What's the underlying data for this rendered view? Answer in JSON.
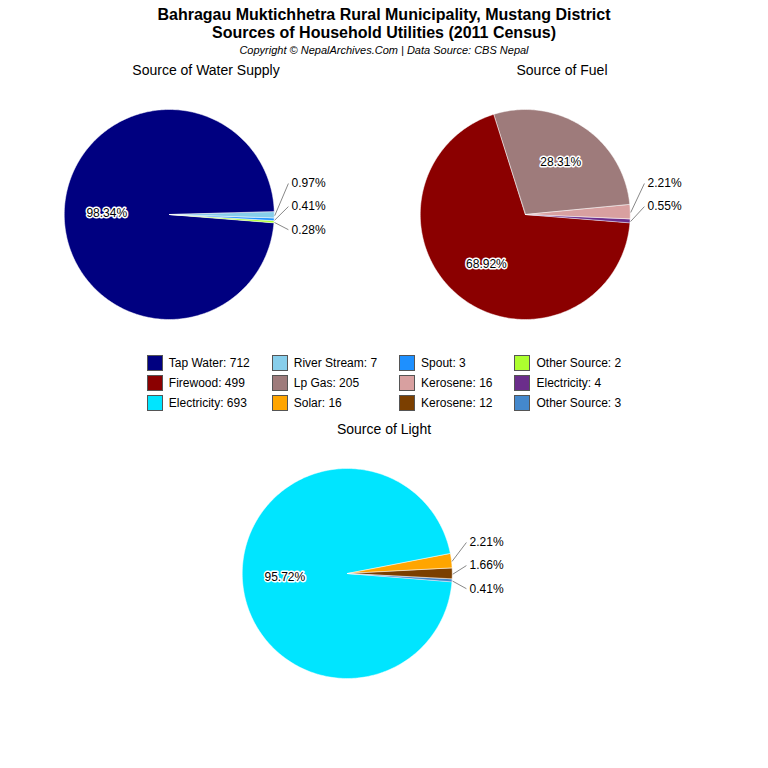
{
  "title": "Bahragau Muktichhetra Rural Municipality, Mustang District",
  "subtitle": "Sources of Household Utilities (2011 Census)",
  "annotations": [
    "Copyright © NepalArchives.Com | Data Source: CBS Nepal"
  ],
  "chart_data": [
    {
      "type": "pie",
      "title": "Source of Water Supply",
      "categories": [
        "Tap Water: 712",
        "River Stream: 7",
        "Spout: 3",
        "Other Source: 2"
      ],
      "values": [
        98.34,
        0.97,
        0.41,
        0.28
      ],
      "value_labels": [
        "98.34%",
        "0.97%",
        "0.41%",
        "0.28%"
      ],
      "colors": [
        "#000080",
        "#87ceeb",
        "#1e90ff",
        "#adff2f"
      ],
      "data_labels": true,
      "legend": "bottom"
    },
    {
      "type": "pie",
      "title": "Source of Fuel",
      "categories": [
        "Firewood: 499",
        "Lp Gas: 205",
        "Kerosene: 16",
        "Electricity: 4"
      ],
      "values": [
        68.92,
        28.31,
        2.21,
        0.55
      ],
      "value_labels": [
        "68.92%",
        "28.31%",
        "2.21%",
        "0.55%"
      ],
      "colors": [
        "#8b0000",
        "#9e7b7b",
        "#d8a0a0",
        "#6b2d8b"
      ],
      "data_labels": true,
      "legend": "bottom"
    },
    {
      "type": "pie",
      "title": "Source of Light",
      "categories": [
        "Electricity: 693",
        "Solar: 16",
        "Kerosene: 12",
        "Other Source: 3"
      ],
      "values": [
        95.72,
        2.21,
        1.66,
        0.41
      ],
      "value_labels": [
        "95.72%",
        "2.21%",
        "1.66%",
        "0.41%"
      ],
      "colors": [
        "#00e5ff",
        "#ffa500",
        "#7b3f00",
        "#4488cc"
      ],
      "data_labels": true,
      "legend": "top"
    }
  ]
}
